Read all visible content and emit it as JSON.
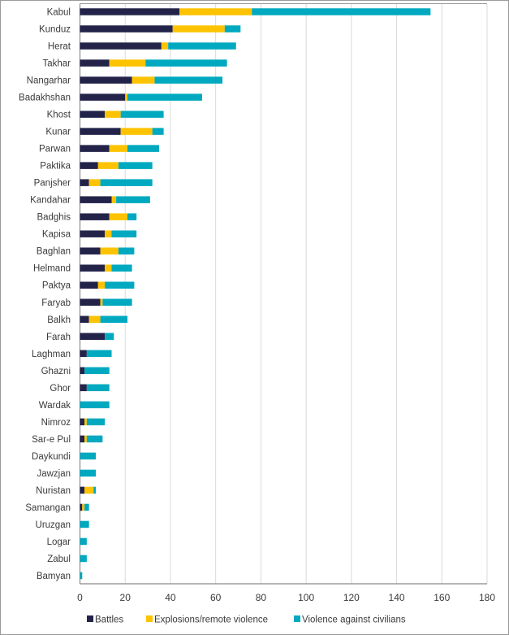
{
  "chart_data": {
    "type": "bar",
    "orientation": "horizontal",
    "stacked": true,
    "categories": [
      "Kabul",
      "Kunduz",
      "Herat",
      "Takhar",
      "Nangarhar",
      "Badakhshan",
      "Khost",
      "Kunar",
      "Parwan",
      "Paktika",
      "Panjsher",
      "Kandahar",
      "Badghis",
      "Kapisa",
      "Baghlan",
      "Helmand",
      "Paktya",
      "Faryab",
      "Balkh",
      "Farah",
      "Laghman",
      "Ghazni",
      "Ghor",
      "Wardak",
      "Nimroz",
      "Sar-e Pul",
      "Daykundi",
      "Jawzjan",
      "Nuristan",
      "Samangan",
      "Uruzgan",
      "Logar",
      "Zabul",
      "Bamyan"
    ],
    "series": [
      {
        "name": "Battles",
        "color": "#23234a",
        "values": [
          44,
          41,
          36,
          13,
          23,
          20,
          11,
          18,
          13,
          8,
          4,
          14,
          13,
          11,
          9,
          11,
          8,
          9,
          4,
          11,
          3,
          2,
          3,
          0,
          2,
          2,
          0,
          0,
          2,
          1,
          0,
          0,
          0,
          0
        ]
      },
      {
        "name": "Explosions/remote violence",
        "color": "#fdc300",
        "values": [
          32,
          23,
          3,
          16,
          10,
          1,
          7,
          14,
          8,
          9,
          5,
          2,
          8,
          3,
          8,
          3,
          3,
          1,
          5,
          0,
          0,
          0,
          0,
          0,
          1,
          1,
          0,
          0,
          4,
          1,
          0,
          0,
          0,
          0
        ]
      },
      {
        "name": "Violence against civilians",
        "color": "#00a9bf",
        "values": [
          79,
          7,
          30,
          36,
          30,
          33,
          19,
          5,
          14,
          15,
          23,
          15,
          4,
          11,
          7,
          9,
          13,
          13,
          12,
          4,
          11,
          11,
          10,
          13,
          8,
          7,
          7,
          7,
          1,
          2,
          4,
          3,
          3,
          1
        ]
      }
    ],
    "xlim": [
      0,
      180
    ],
    "xticks": [
      "0",
      "20",
      "40",
      "60",
      "80",
      "100",
      "120",
      "140",
      "160",
      "180"
    ],
    "grid": true,
    "legend_position": "bottom",
    "title": "",
    "xlabel": "",
    "ylabel": ""
  }
}
